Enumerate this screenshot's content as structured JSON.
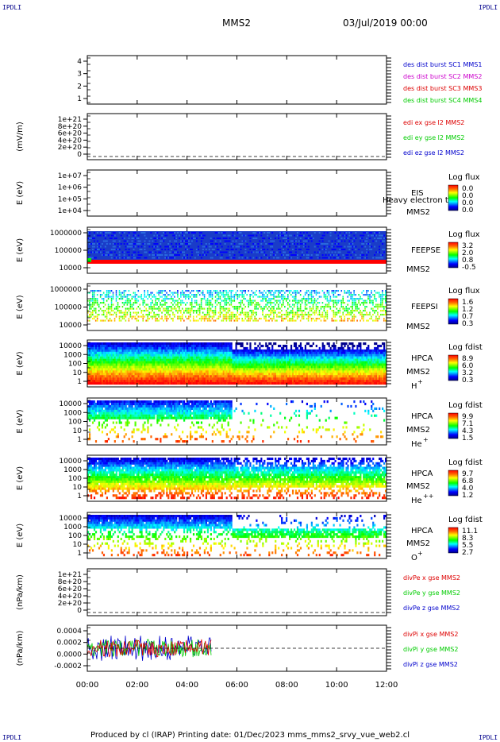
{
  "corners": {
    "tl": "IPDLI",
    "tr": "IPDLI",
    "bl": "IPDLI",
    "br": "IPDLI"
  },
  "header": {
    "spacecraft": "MMS2",
    "date": "03/Jul/2019 00:00"
  },
  "footer": "Produced by cl (IRAP)    Printing date: 01/Dec/2023    mms_mms2_srvy_vue_web2.cl",
  "colors": {
    "red": "#dd0000",
    "green": "#00cc00",
    "blue": "#0000cc",
    "magenta": "#cc00cc"
  },
  "chart_data": [
    {
      "type": "line",
      "ylim": [
        0.5,
        4.5
      ],
      "ytick_labels": [
        "4",
        "3",
        "2",
        "1"
      ],
      "legend": [
        {
          "text": "des dist burst SC1 MMS1",
          "color": "#0000cc"
        },
        {
          "text": "des dist burst SC2 MMS2",
          "color": "#cc00cc"
        },
        {
          "text": "des dist burst SC3 MMS3",
          "color": "#dd0000"
        },
        {
          "text": "des dist burst SC4 MMS4",
          "color": "#00cc00"
        }
      ]
    },
    {
      "type": "line",
      "ylabel": "(mV/m)",
      "ylim": [
        0,
        1.1e+21
      ],
      "ytick_labels": [
        "1e+21",
        "8e+20",
        "6e+20",
        "4e+20",
        "2e+20",
        "0"
      ],
      "legend": [
        {
          "text": "edi ex gse l2 MMS2",
          "color": "#dd0000"
        },
        {
          "text": "edi ey gse l2 MMS2",
          "color": "#00cc00"
        },
        {
          "text": "edi ez gse l2 MMS2",
          "color": "#0000cc"
        }
      ]
    },
    {
      "type": "heatmap",
      "ylabel": "E (eV)",
      "ytick_labels": [
        "1e+07",
        "1e+06",
        "1e+05",
        "1e+04"
      ],
      "right_labels": [
        "EIS",
        "MMS2"
      ],
      "overlay": "Heavy electron to",
      "colorbar": {
        "title": "Log flux",
        "ticks": [
          "0.0",
          "0.0",
          "0.0",
          "0.0"
        ]
      }
    },
    {
      "type": "heatmap",
      "ylabel": "E (eV)",
      "ytick_labels": [
        "1000000",
        "100000",
        "10000"
      ],
      "right_labels": [
        "FEEPSE",
        "MMS2"
      ],
      "colorbar": {
        "title": "Log flux",
        "ticks": [
          "3.2",
          "2.0",
          "0.8",
          "-0.5"
        ]
      }
    },
    {
      "type": "heatmap",
      "ylabel": "E (eV)",
      "ytick_labels": [
        "1000000",
        "100000",
        "10000"
      ],
      "right_labels": [
        "FEEPSI",
        "MMS2"
      ],
      "colorbar": {
        "title": "Log flux",
        "ticks": [
          "1.6",
          "1.2",
          "0.7",
          "0.3"
        ]
      }
    },
    {
      "type": "heatmap",
      "ylabel": "E (eV)",
      "ytick_labels": [
        "10000",
        "1000",
        "100",
        "10",
        "1"
      ],
      "right_labels": [
        "HPCA",
        "MMS2"
      ],
      "species": "H",
      "charge": "+",
      "colorbar": {
        "title": "Log fdist",
        "ticks": [
          "8.9",
          "6.0",
          "3.2",
          "0.3"
        ]
      }
    },
    {
      "type": "heatmap",
      "ylabel": "E (eV)",
      "ytick_labels": [
        "10000",
        "1000",
        "100",
        "10",
        "1"
      ],
      "right_labels": [
        "HPCA",
        "MMS2"
      ],
      "species": "He",
      "charge": "+",
      "colorbar": {
        "title": "Log fdist",
        "ticks": [
          "9.9",
          "7.1",
          "4.3",
          "1.5"
        ]
      }
    },
    {
      "type": "heatmap",
      "ylabel": "E (eV)",
      "ytick_labels": [
        "10000",
        "1000",
        "100",
        "10",
        "1"
      ],
      "right_labels": [
        "HPCA",
        "MMS2"
      ],
      "species": "He",
      "charge": "++",
      "colorbar": {
        "title": "Log fdist",
        "ticks": [
          "9.7",
          "6.8",
          "4.0",
          "1.2"
        ]
      }
    },
    {
      "type": "heatmap",
      "ylabel": "E (eV)",
      "ytick_labels": [
        "10000",
        "1000",
        "100",
        "10",
        "1"
      ],
      "right_labels": [
        "HPCA",
        "MMS2"
      ],
      "species": "O",
      "charge": "+",
      "colorbar": {
        "title": "Log fdist",
        "ticks": [
          "11.1",
          "8.3",
          "5.5",
          "2.7"
        ]
      }
    },
    {
      "type": "line",
      "ylabel": "(nPa/km)",
      "ylim": [
        0,
        1.1e+21
      ],
      "ytick_labels": [
        "1e+21",
        "8e+20",
        "6e+20",
        "4e+20",
        "2e+20",
        "0"
      ],
      "legend": [
        {
          "text": "divPe x gse MMS2",
          "color": "#dd0000"
        },
        {
          "text": "divPe y gse MMS2",
          "color": "#00cc00"
        },
        {
          "text": "divPe z gse MMS2",
          "color": "#0000cc"
        }
      ]
    },
    {
      "type": "line",
      "ylabel": "(nPa/km)",
      "ylim": [
        -0.0004,
        0.0004
      ],
      "ytick_labels": [
        "0.0004",
        "0.0002",
        "0.0000",
        "-0.0002"
      ],
      "legend": [
        {
          "text": "divPi x gse MMS2",
          "color": "#dd0000"
        },
        {
          "text": "divPi y gse MMS2",
          "color": "#00cc00"
        },
        {
          "text": "divPi z gse MMS2",
          "color": "#0000cc"
        }
      ]
    }
  ],
  "x_axis": {
    "ticks": [
      "00:00",
      "02:00",
      "04:00",
      "06:00",
      "08:00",
      "10:00",
      "12:00"
    ],
    "range_hours": [
      0,
      12
    ]
  }
}
